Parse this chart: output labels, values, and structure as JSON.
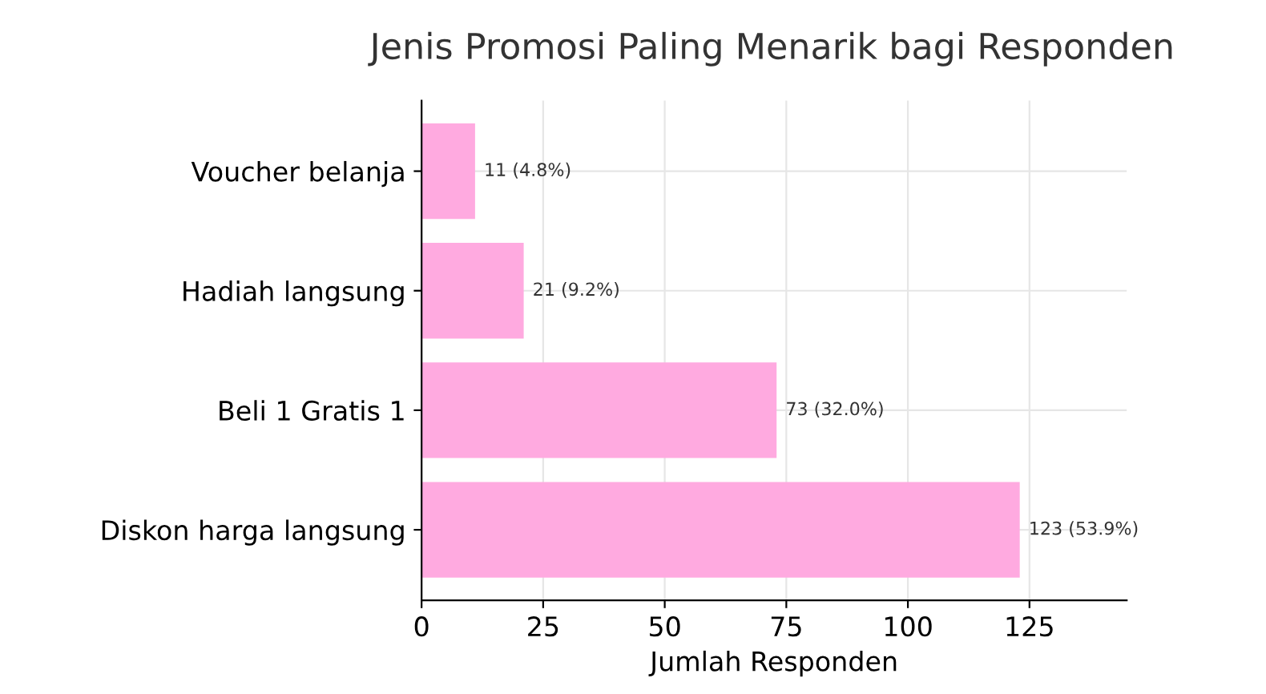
{
  "chart_data": {
    "type": "bar",
    "orientation": "horizontal",
    "title": "Jenis Promosi Paling Menarik bagi Responden",
    "xlabel": "Jumlah Responden",
    "categories": [
      "Voucher belanja",
      "Hadiah langsung",
      "Beli 1 Gratis 1",
      "Diskon harga langsung"
    ],
    "values": [
      11,
      21,
      73,
      123
    ],
    "value_labels": [
      "11 (4.8%)",
      "21 (9.2%)",
      "73 (32.0%)",
      "123 (53.9%)"
    ],
    "color": "#ffaae0",
    "xlim": [
      0,
      145
    ],
    "xticks": [
      0,
      25,
      50,
      75,
      100,
      125
    ],
    "grid": true
  }
}
